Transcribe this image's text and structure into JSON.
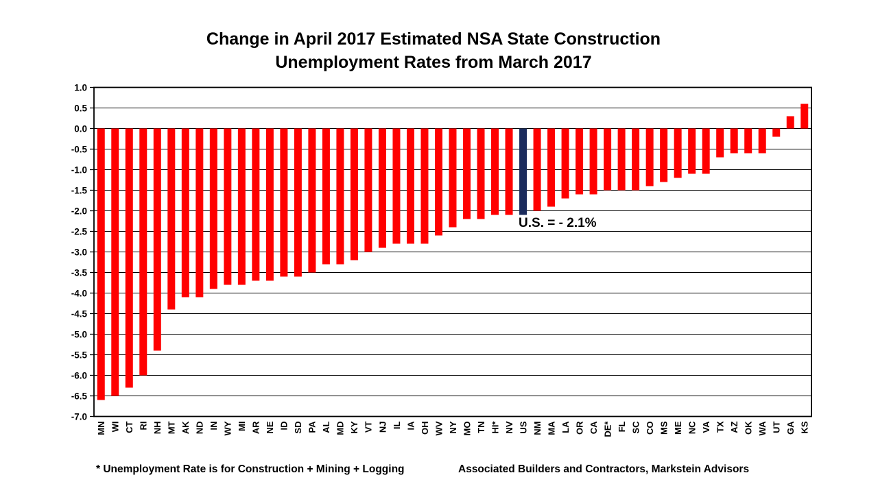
{
  "title": {
    "line1": "Change in April 2017 Estimated NSA State Construction",
    "line2": "Unemployment Rates from March 2017"
  },
  "chart_data": {
    "type": "bar",
    "title": "Change in April 2017 Estimated NSA State Construction Unemployment Rates from March 2017",
    "xlabel": "",
    "ylabel": "",
    "ylim": [
      -7.0,
      1.0
    ],
    "ytick_step": 0.5,
    "grid": "horizontal",
    "legend": "none",
    "bar_color": "#FF0000",
    "highlight_color": "#1A2B5C",
    "highlight_category": "US",
    "annotation": {
      "text": "U.S. = - 2.1%",
      "attached_to": "US"
    },
    "categories": [
      "MN",
      "WI",
      "CT",
      "RI",
      "NH",
      "MT",
      "AK",
      "ND",
      "IN",
      "WY",
      "MI",
      "AR",
      "NE",
      "ID",
      "SD",
      "PA",
      "AL",
      "MD",
      "KY",
      "VT",
      "NJ",
      "IL",
      "IA",
      "OH",
      "WV",
      "NY",
      "MO",
      "TN",
      "HI*",
      "NV",
      "US",
      "NM",
      "MA",
      "LA",
      "OR",
      "CA",
      "DE*",
      "FL",
      "SC",
      "CO",
      "MS",
      "ME",
      "NC",
      "VA",
      "TX",
      "AZ",
      "OK",
      "WA",
      "UT",
      "GA",
      "KS"
    ],
    "values": [
      -6.6,
      -6.5,
      -6.3,
      -6.0,
      -5.4,
      -4.4,
      -4.1,
      -4.1,
      -3.9,
      -3.8,
      -3.8,
      -3.7,
      -3.7,
      -3.6,
      -3.6,
      -3.5,
      -3.3,
      -3.3,
      -3.2,
      -3.0,
      -2.9,
      -2.8,
      -2.8,
      -2.8,
      -2.6,
      -2.4,
      -2.2,
      -2.2,
      -2.1,
      -2.1,
      -2.1,
      -2.0,
      -1.9,
      -1.7,
      -1.6,
      -1.6,
      -1.5,
      -1.5,
      -1.5,
      -1.4,
      -1.3,
      -1.2,
      -1.1,
      -1.1,
      -0.7,
      -0.6,
      -0.6,
      -0.6,
      -0.2,
      0.3,
      0.6
    ]
  },
  "footer": {
    "note": "* Unemployment Rate is for Construction + Mining + Logging",
    "source": "Associated Builders and Contractors, Markstein Advisors"
  }
}
